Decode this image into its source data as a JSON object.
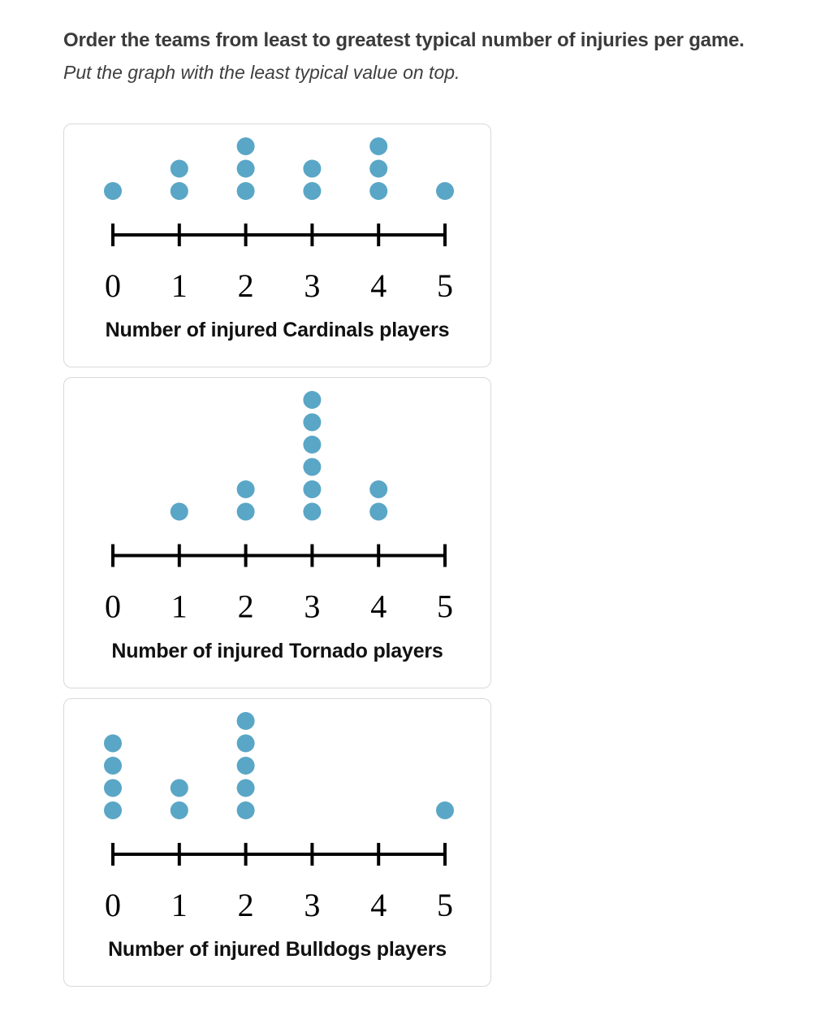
{
  "prompt": {
    "line1": "Order the teams from least to greatest typical number of injuries per game.",
    "line2": "Put the graph with the least typical value on top."
  },
  "chart_data": [
    {
      "type": "dotplot",
      "team": "Cardinals",
      "xlabel": "Number of injured Cardinals players",
      "x": [
        0,
        1,
        2,
        3,
        4,
        5
      ],
      "tick_labels": [
        "0",
        "1",
        "2",
        "3",
        "4",
        "5"
      ],
      "counts": [
        1,
        2,
        3,
        2,
        3,
        1
      ],
      "xlim": [
        0,
        5
      ],
      "dot_color": "#5aa6c6",
      "axis_color": "#000000"
    },
    {
      "type": "dotplot",
      "team": "Tornado",
      "xlabel": "Number of injured Tornado players",
      "x": [
        0,
        1,
        2,
        3,
        4,
        5
      ],
      "tick_labels": [
        "0",
        "1",
        "2",
        "3",
        "4",
        "5"
      ],
      "counts": [
        0,
        1,
        2,
        6,
        2,
        0
      ],
      "xlim": [
        0,
        5
      ],
      "dot_color": "#5aa6c6",
      "axis_color": "#000000"
    },
    {
      "type": "dotplot",
      "team": "Bulldogs",
      "xlabel": "Number of injured Bulldogs players",
      "x": [
        0,
        1,
        2,
        3,
        4,
        5
      ],
      "tick_labels": [
        "0",
        "1",
        "2",
        "3",
        "4",
        "5"
      ],
      "counts": [
        4,
        2,
        5,
        0,
        0,
        1
      ],
      "xlim": [
        0,
        5
      ],
      "dot_color": "#5aa6c6",
      "axis_color": "#000000"
    }
  ],
  "colors": {
    "dot": "#5aa6c6",
    "card_border": "#d9d9d9",
    "text_primary": "#3b3b3b",
    "axis": "#000000"
  }
}
